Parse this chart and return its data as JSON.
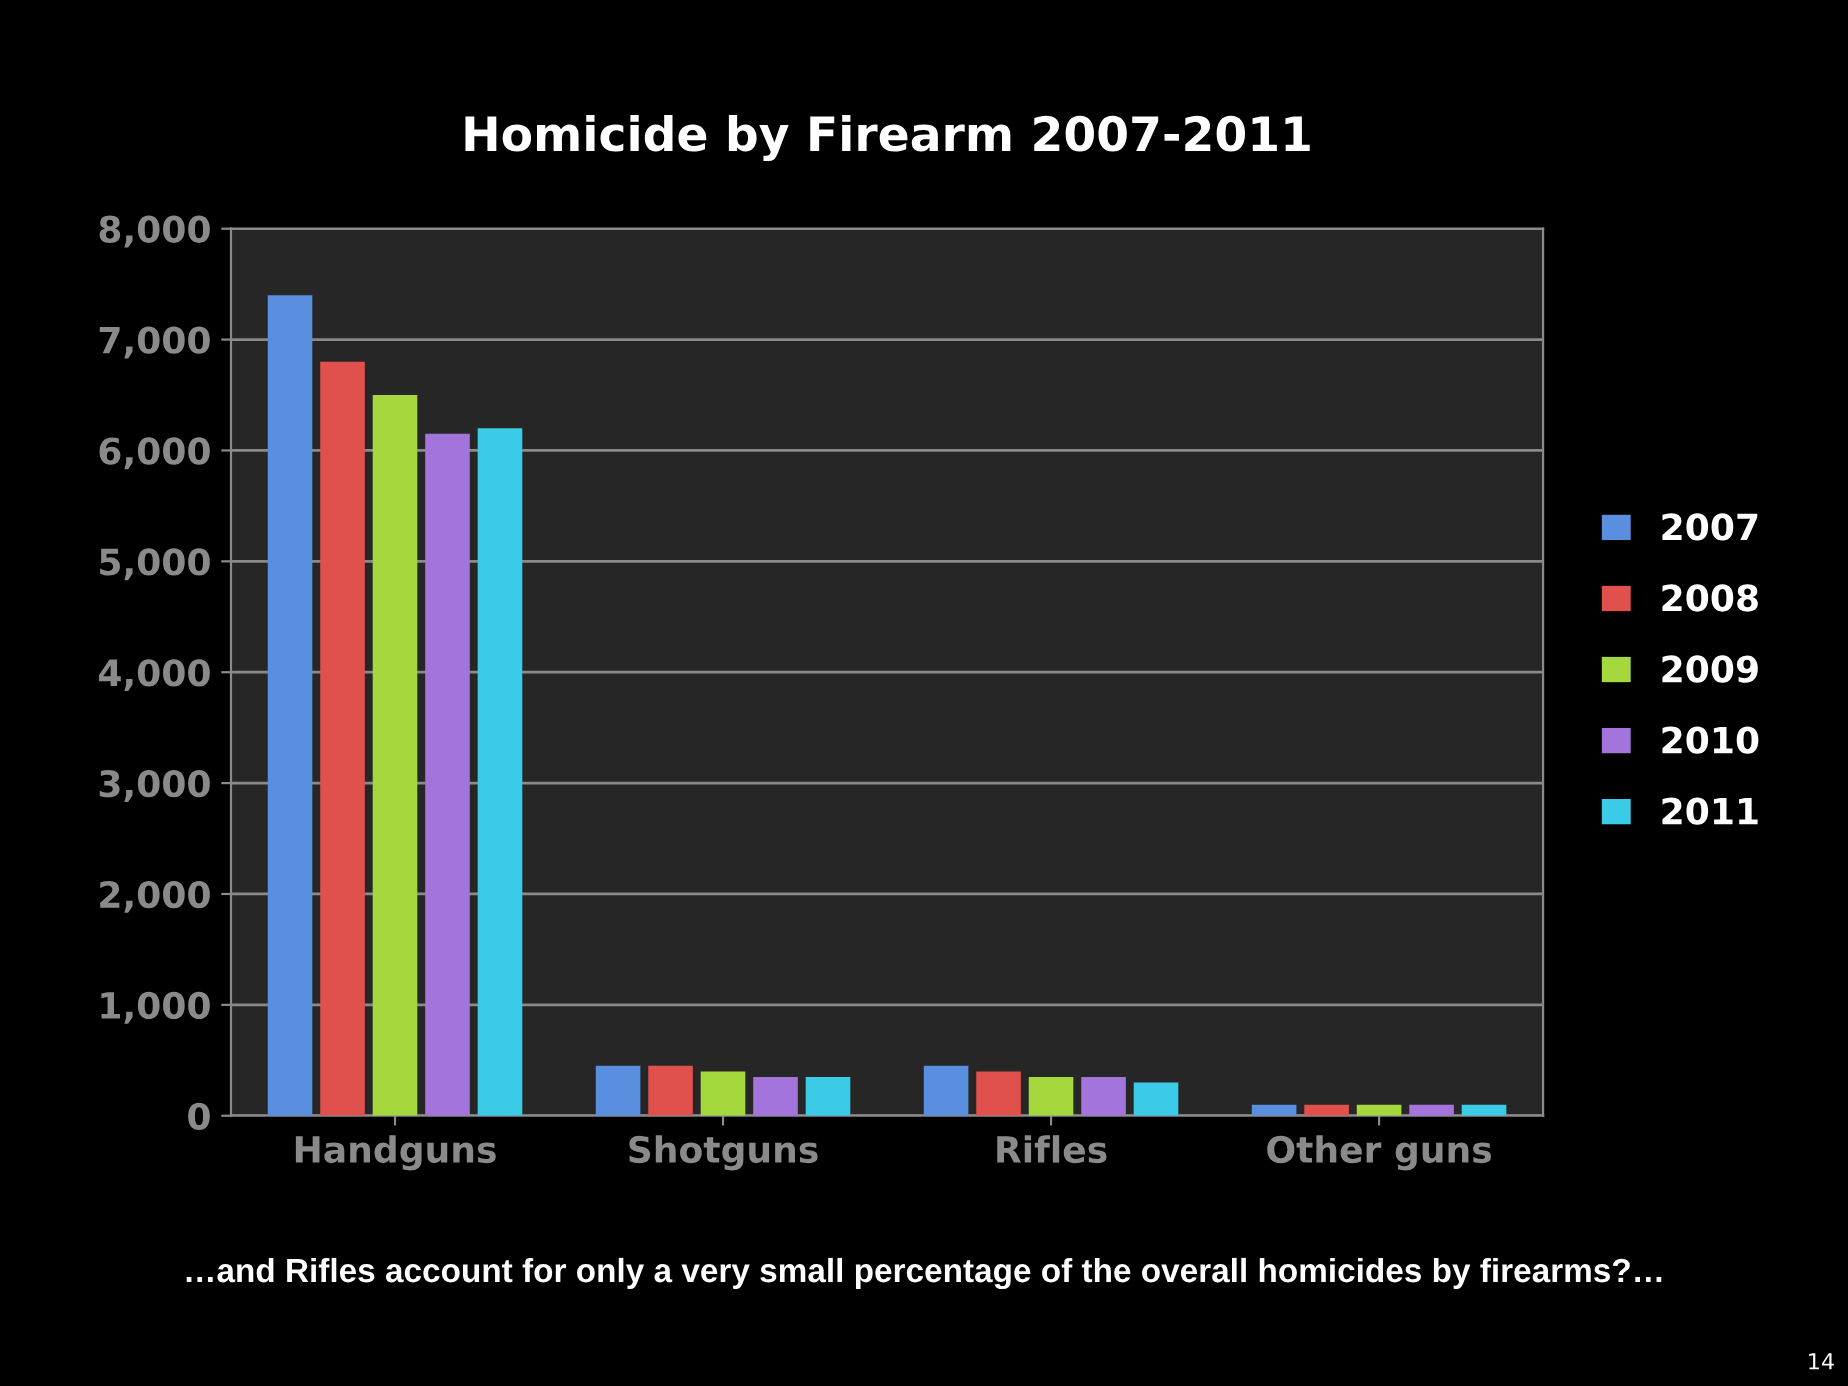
{
  "chart_data": {
    "type": "bar",
    "title": "Homicide by Firearm 2007-2011",
    "categories": [
      "Handguns",
      "Shotguns",
      "Rifles",
      "Other guns"
    ],
    "series": [
      {
        "name": "2007",
        "color": "#5a8fe0",
        "values": [
          7400,
          450,
          450,
          100
        ]
      },
      {
        "name": "2008",
        "color": "#e0504c",
        "values": [
          6800,
          450,
          400,
          100
        ]
      },
      {
        "name": "2009",
        "color": "#a4d83c",
        "values": [
          6500,
          400,
          350,
          100
        ]
      },
      {
        "name": "2010",
        "color": "#a274dc",
        "values": [
          6150,
          350,
          350,
          100
        ]
      },
      {
        "name": "2011",
        "color": "#3ccbe6",
        "values": [
          6200,
          350,
          300,
          100
        ]
      }
    ],
    "ylim": [
      0,
      8000
    ],
    "yticks": [
      {
        "value": 0,
        "label": "0"
      },
      {
        "value": 1000,
        "label": "1,000"
      },
      {
        "value": 2000,
        "label": "2,000"
      },
      {
        "value": 3000,
        "label": "3,000"
      },
      {
        "value": 4000,
        "label": "4,000"
      },
      {
        "value": 5000,
        "label": "5,000"
      },
      {
        "value": 6000,
        "label": "6,000"
      },
      {
        "value": 7000,
        "label": "7,000"
      },
      {
        "value": 8000,
        "label": "8,000"
      }
    ],
    "grid": "y",
    "legend": "right",
    "annotations": [
      "…and Rifles account for only a very small percentage of the overall homicides by firearms?…",
      "14"
    ]
  }
}
